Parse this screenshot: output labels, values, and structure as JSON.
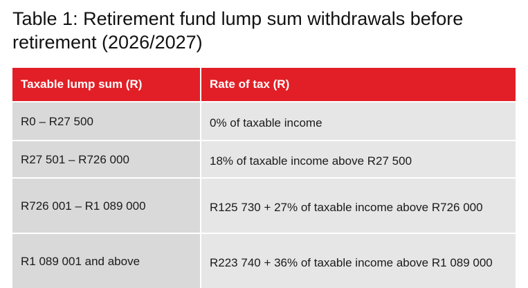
{
  "title": "Table 1: Retirement fund lump sum withdrawals before retirement (2026/2027)",
  "table": {
    "headers": [
      "Taxable lump sum (R)",
      "Rate of tax (R)"
    ],
    "rows": [
      [
        "R0 – R27 500",
        "0% of taxable income"
      ],
      [
        "R27 501 – R726 000",
        "18% of taxable income above R27 500"
      ],
      [
        "R726 001 – R1 089 000",
        "R125 730 + 27% of taxable income above R726 000"
      ],
      [
        "R1 089 001 and above",
        "R223 740 + 36% of taxable income above R1 089 000"
      ]
    ]
  },
  "colors": {
    "header_bg": "#e21f26",
    "row_bg_left": "#d9d9da",
    "row_bg_right": "#e6e6e6"
  }
}
